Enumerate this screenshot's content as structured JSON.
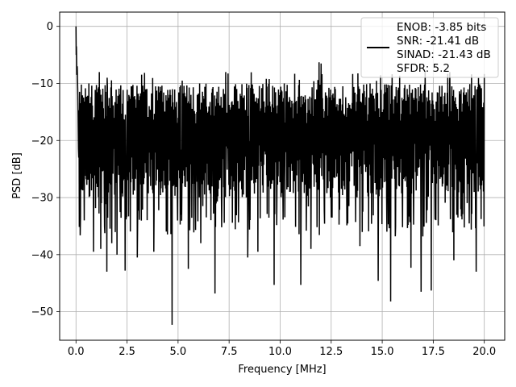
{
  "chart_data": {
    "type": "line",
    "title": "",
    "xlabel": "Frequency [MHz]",
    "ylabel": "PSD [dB]",
    "xlim": [
      -0.8,
      21.0
    ],
    "ylim": [
      -55,
      2.5
    ],
    "x_ticks": [
      0.0,
      2.5,
      5.0,
      7.5,
      10.0,
      12.5,
      15.0,
      17.5,
      20.0
    ],
    "x_tick_labels": [
      "0.0",
      "2.5",
      "5.0",
      "7.5",
      "10.0",
      "12.5",
      "15.0",
      "17.5",
      "20.0"
    ],
    "y_ticks": [
      0,
      -10,
      -20,
      -30,
      -40,
      -50
    ],
    "y_tick_labels": [
      "0",
      "−10",
      "−20",
      "−30",
      "−40",
      "−50"
    ],
    "grid": true,
    "legend_position": "top-right",
    "line_color": "#000000",
    "series": [
      {
        "legend_lines": [
          "ENOB: -3.85 bits",
          "SNR: -21.41 dB",
          "SINAD: -21.43 dB",
          "SFDR: 5.2"
        ],
        "x_range": [
          0.0,
          20.0
        ],
        "start_points": [
          [
            0.0,
            0.0
          ],
          [
            0.01,
            -5.0
          ],
          [
            0.02,
            -3.5
          ],
          [
            0.04,
            -8.5
          ],
          [
            0.06,
            -7.0
          ],
          [
            0.09,
            -12.0
          ],
          [
            0.12,
            -21.5
          ]
        ],
        "noise_floor_typical": [
          -28,
          -10
        ],
        "notable_dips": [
          [
            0.4,
            -34
          ],
          [
            0.85,
            -39.5
          ],
          [
            1.2,
            -39
          ],
          [
            1.5,
            -43
          ],
          [
            1.75,
            -38
          ],
          [
            2.0,
            -40
          ],
          [
            2.4,
            -42.8
          ],
          [
            3.0,
            -40.5
          ],
          [
            3.8,
            -39.5
          ],
          [
            4.7,
            -52.3
          ],
          [
            5.5,
            -42.5
          ],
          [
            6.1,
            -38
          ],
          [
            6.8,
            -46.8
          ],
          [
            8.4,
            -40.5
          ],
          [
            8.9,
            -39.5
          ],
          [
            9.7,
            -45.3
          ],
          [
            11.0,
            -45.3
          ],
          [
            11.5,
            -39
          ],
          [
            13.9,
            -38.5
          ],
          [
            14.8,
            -44.6
          ],
          [
            15.4,
            -48.2
          ],
          [
            16.4,
            -42.3
          ],
          [
            16.9,
            -46.5
          ],
          [
            17.4,
            -46.3
          ],
          [
            18.5,
            -41
          ],
          [
            19.6,
            -43
          ]
        ],
        "notable_peaks": [
          [
            1.5,
            -9.0
          ],
          [
            5.2,
            -9.5
          ],
          [
            10.7,
            -8.3
          ],
          [
            11.9,
            -6.3
          ],
          [
            12.0,
            -6.5
          ],
          [
            17.1,
            -7.8
          ],
          [
            18.3,
            -8.0
          ]
        ]
      }
    ]
  }
}
